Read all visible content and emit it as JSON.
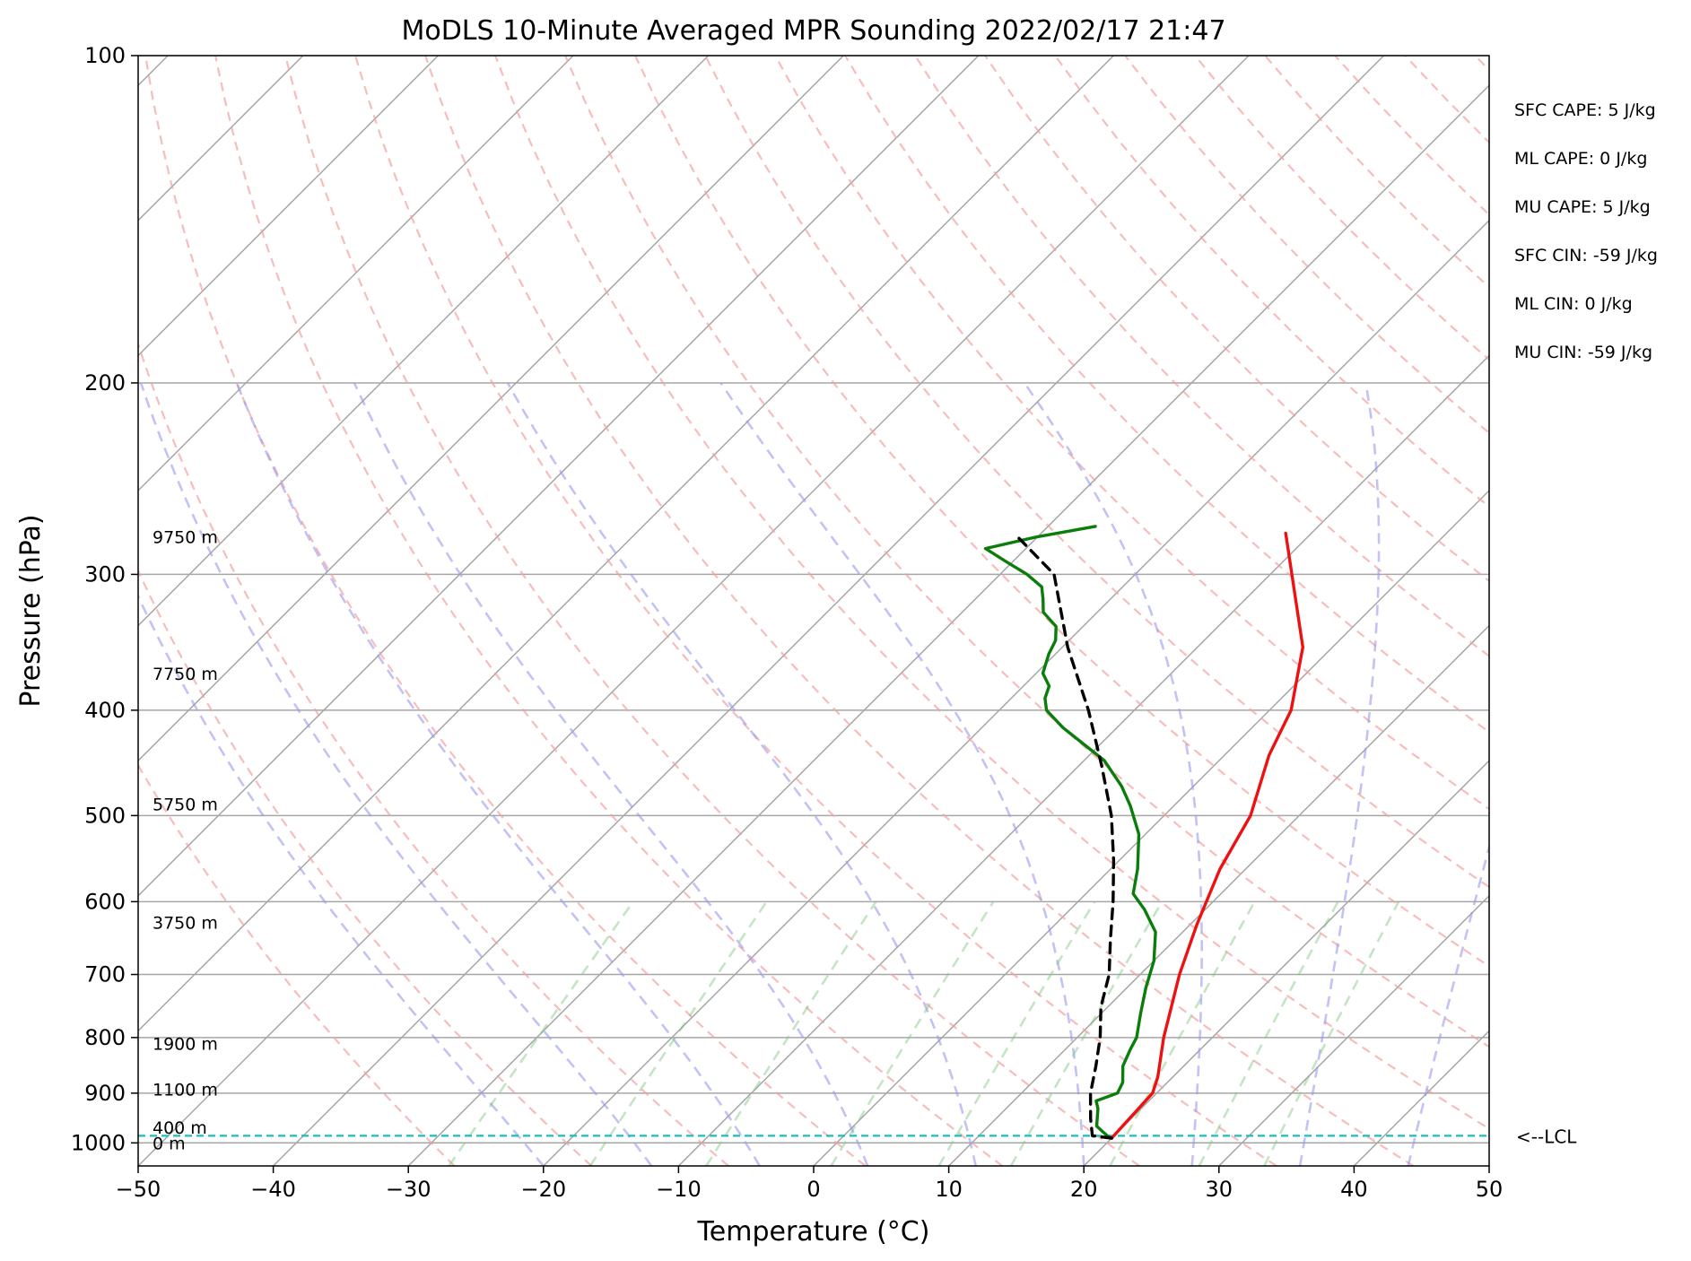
{
  "chart_data": {
    "type": "line",
    "title": "MoDLS 10-Minute Averaged MPR Sounding 2022/02/17 21:47",
    "xlabel": "Temperature (°C)",
    "ylabel": "Pressure (hPa)",
    "xlim": [
      -50,
      50
    ],
    "ylim": [
      1050,
      100
    ],
    "x_scale": "skew-T (isotherms skewed 45°)",
    "y_scale": "log",
    "grid": true,
    "x_ticks": [
      "−50",
      "−40",
      "−30",
      "−20",
      "−10",
      "0",
      "10",
      "20",
      "30",
      "40",
      "50"
    ],
    "y_ticks": [
      "100",
      "200",
      "300",
      "400",
      "500",
      "600",
      "700",
      "800",
      "900",
      "1000"
    ],
    "y_tick_values": [
      100,
      200,
      300,
      400,
      500,
      600,
      700,
      800,
      900,
      1000
    ],
    "height_labels": [
      {
        "text": "9750 m",
        "p": 277
      },
      {
        "text": "7750 m",
        "p": 370
      },
      {
        "text": "5750 m",
        "p": 488
      },
      {
        "text": "3750 m",
        "p": 627
      },
      {
        "text": "1900 m",
        "p": 810
      },
      {
        "text": "1100 m",
        "p": 893
      },
      {
        "text": "400 m",
        "p": 968
      },
      {
        "text": "0 m",
        "p": 1000
      }
    ],
    "stats": [
      "SFC CAPE: 5 J/kg",
      "ML CAPE: 0 J/kg",
      "MU CAPE: 5 J/kg",
      "SFC CIN: -59 J/kg",
      "ML CIN: 0 J/kg",
      "MU CIN: -59 J/kg"
    ],
    "lcl": {
      "label": "<--LCL",
      "p": 985
    },
    "series": [
      {
        "key": "temperature",
        "color": "#ee1111",
        "style": "solid",
        "points": [
          [
            20,
            990
          ],
          [
            19.9,
            960
          ],
          [
            19.7,
            900
          ],
          [
            18.9,
            870
          ],
          [
            16.4,
            800
          ],
          [
            12.9,
            700
          ],
          [
            10.5,
            630
          ],
          [
            8.1,
            560
          ],
          [
            6.4,
            500
          ],
          [
            3.3,
            440
          ],
          [
            1.6,
            400
          ],
          [
            -2.2,
            350
          ],
          [
            -11.9,
            275
          ]
        ]
      },
      {
        "key": "dewpoint",
        "color": "#0a7d0a",
        "style": "solid",
        "points": [
          [
            20,
            990
          ],
          [
            19.5,
            985
          ],
          [
            18,
            965
          ],
          [
            16.8,
            930
          ],
          [
            16.1,
            915
          ],
          [
            17.1,
            900
          ],
          [
            16.7,
            880
          ],
          [
            15.5,
            850
          ],
          [
            14.8,
            820
          ],
          [
            14.4,
            800
          ],
          [
            12.9,
            760
          ],
          [
            11.4,
            720
          ],
          [
            10,
            680
          ],
          [
            8,
            640
          ],
          [
            5.5,
            610
          ],
          [
            3.5,
            590
          ],
          [
            2,
            560
          ],
          [
            -0.5,
            520
          ],
          [
            -3.2,
            490
          ],
          [
            -5.3,
            470
          ],
          [
            -8.5,
            445
          ],
          [
            -11.2,
            430
          ],
          [
            -14,
            415
          ],
          [
            -16.5,
            400
          ],
          [
            -17.5,
            390
          ],
          [
            -18.1,
            380
          ],
          [
            -19.5,
            370
          ],
          [
            -20.5,
            355
          ],
          [
            -21,
            345
          ],
          [
            -22,
            335
          ],
          [
            -24,
            325
          ],
          [
            -25,
            316
          ],
          [
            -26,
            308
          ],
          [
            -28,
            300
          ],
          [
            -30.5,
            292
          ],
          [
            -33,
            284
          ],
          [
            -30,
            277
          ],
          [
            -26.5,
            271
          ]
        ]
      },
      {
        "key": "parcel",
        "color": "#000000",
        "style": "dashed",
        "points": [
          [
            20,
            990
          ],
          [
            18.4,
            985
          ],
          [
            17,
            950
          ],
          [
            15.1,
            900
          ],
          [
            13.5,
            850
          ],
          [
            11.7,
            800
          ],
          [
            9.5,
            750
          ],
          [
            7.7,
            700
          ],
          [
            5.2,
            650
          ],
          [
            2.6,
            600
          ],
          [
            -0.4,
            550
          ],
          [
            -3.9,
            500
          ],
          [
            -8.3,
            450
          ],
          [
            -13.4,
            400
          ],
          [
            -19.6,
            350
          ],
          [
            -26,
            300
          ],
          [
            -32,
            275
          ]
        ]
      }
    ]
  }
}
